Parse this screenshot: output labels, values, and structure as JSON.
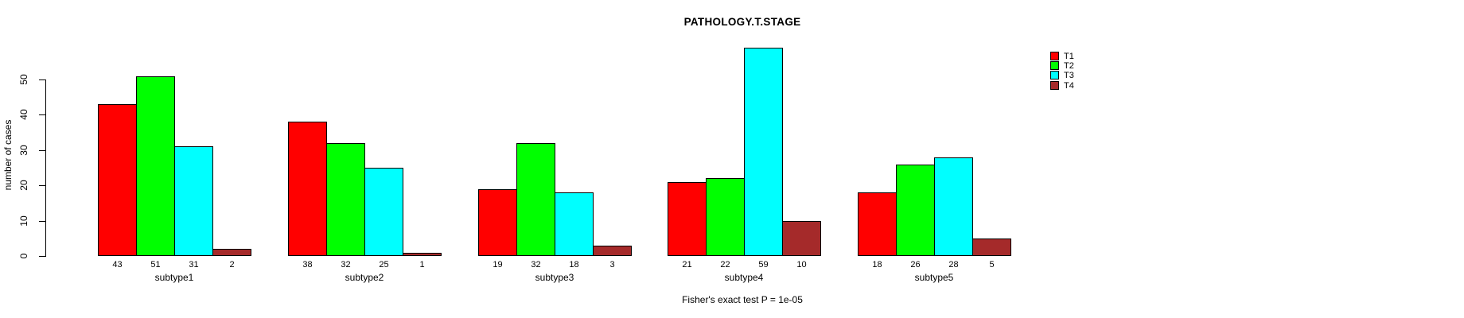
{
  "title": "PATHOLOGY.T.STAGE",
  "y_axis_label": "number of cases",
  "footnote": "Fisher's exact test P = 1e-05",
  "legend": {
    "position": "top-right",
    "items": [
      {
        "label": "T1",
        "color": "#FF0000"
      },
      {
        "label": "T2",
        "color": "#00FF00"
      },
      {
        "label": "T3",
        "color": "#00FFFF"
      },
      {
        "label": "T4",
        "color": "#A52A2A"
      }
    ]
  },
  "chart_data": {
    "type": "bar",
    "title": "PATHOLOGY.T.STAGE",
    "xlabel": "",
    "ylabel": "number of cases",
    "categories": [
      "subtype1",
      "subtype2",
      "subtype3",
      "subtype4",
      "subtype5"
    ],
    "series": [
      {
        "name": "T1",
        "color": "#FF0000",
        "values": [
          43,
          38,
          19,
          21,
          18
        ]
      },
      {
        "name": "T2",
        "color": "#00FF00",
        "values": [
          51,
          32,
          32,
          22,
          26
        ]
      },
      {
        "name": "T3",
        "color": "#00FFFF",
        "values": [
          31,
          25,
          18,
          59,
          28
        ]
      },
      {
        "name": "T4",
        "color": "#A52A2A",
        "values": [
          2,
          1,
          3,
          10,
          5
        ]
      }
    ],
    "bar_value_labels": [
      [
        43,
        51,
        31,
        2
      ],
      [
        38,
        32,
        25,
        1
      ],
      [
        19,
        32,
        18,
        3
      ],
      [
        21,
        22,
        59,
        10
      ],
      [
        18,
        26,
        28,
        5
      ]
    ],
    "yticks": [
      0,
      10,
      20,
      30,
      40,
      50
    ],
    "ylim": [
      0,
      50
    ],
    "grid": false,
    "legend_position": "top-right",
    "annotation": "Fisher's exact test P = 1e-05"
  }
}
